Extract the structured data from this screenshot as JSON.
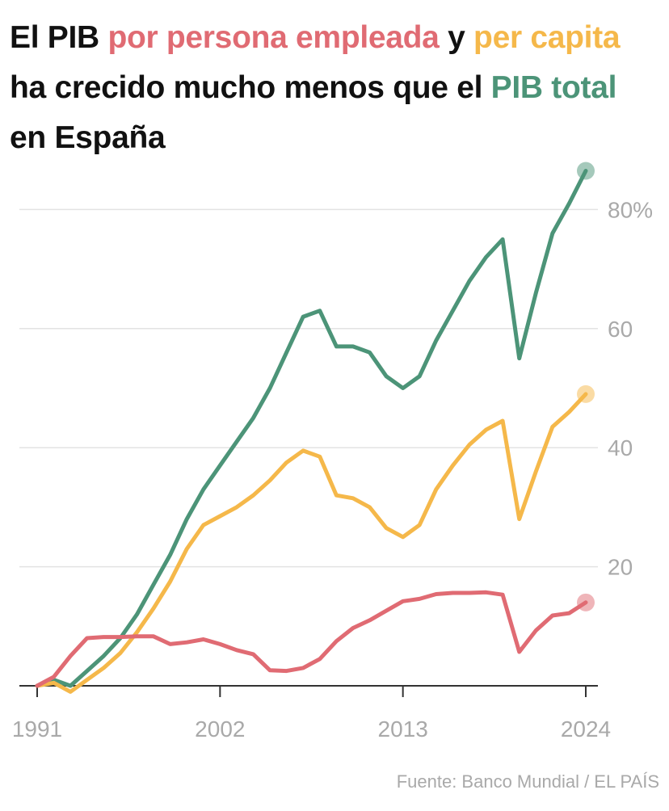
{
  "title": {
    "part1": "El PIB ",
    "part2": "por persona empleada",
    "part3": " y ",
    "part4": "per capita",
    "part5": " ha crecido mucho menos que el ",
    "part6": "PIB total",
    "part7": " en España"
  },
  "source": "Fuente: Banco Mundial / EL PAÍS",
  "colors": {
    "green": "#4c9478",
    "yellow": "#f5b84a",
    "red": "#e06b73",
    "grid": "#e3e3e3",
    "axis": "#333333",
    "tick_text": "#a9a9a9"
  },
  "chart_data": {
    "type": "line",
    "x": [
      1991,
      1992,
      1993,
      1994,
      1995,
      1996,
      1997,
      1998,
      1999,
      2000,
      2001,
      2002,
      2003,
      2004,
      2005,
      2006,
      2007,
      2008,
      2009,
      2010,
      2011,
      2012,
      2013,
      2014,
      2015,
      2016,
      2017,
      2018,
      2019,
      2020,
      2021,
      2022,
      2023,
      2024
    ],
    "xticks": [
      1991,
      2002,
      2013,
      2024
    ],
    "xtick_labels": [
      "1991",
      "2002",
      "2013",
      "2024"
    ],
    "yticks": [
      20,
      40,
      60,
      80
    ],
    "ytick_labels": [
      "20",
      "40",
      "60",
      "80%"
    ],
    "xlim": [
      1991,
      2024
    ],
    "ylim": [
      0,
      87
    ],
    "grid": true,
    "series": [
      {
        "name": "PIB total",
        "color": "#4c9478",
        "values": [
          0,
          1,
          0,
          2.5,
          5,
          8,
          12,
          17,
          22,
          28,
          33,
          37,
          41,
          45,
          50,
          56,
          62,
          63,
          57,
          57,
          56,
          52,
          50,
          52,
          58,
          63,
          68,
          72,
          75,
          55,
          66,
          76,
          81,
          86.5
        ]
      },
      {
        "name": "PIB per capita",
        "color": "#f5b84a",
        "values": [
          0,
          0.5,
          -1,
          1,
          3,
          5.5,
          9,
          13,
          17.5,
          23,
          27,
          28.5,
          30,
          32,
          34.5,
          37.5,
          39.5,
          38.5,
          32,
          31.5,
          30,
          26.5,
          25,
          27,
          33,
          37,
          40.5,
          43,
          44.5,
          28,
          36,
          43.5,
          46,
          49
        ]
      },
      {
        "name": "PIB por persona empleada",
        "color": "#e06b73",
        "values": [
          0,
          1.5,
          5,
          8,
          8.2,
          8.2,
          8.3,
          8.3,
          7,
          7.3,
          7.8,
          7,
          6,
          5.3,
          2.6,
          2.5,
          3,
          4.5,
          7.5,
          9.7,
          11,
          12.6,
          14.2,
          14.6,
          15.4,
          15.6,
          15.6,
          15.7,
          15.3,
          5.7,
          9.3,
          11.8,
          12.2,
          14
        ]
      }
    ]
  }
}
